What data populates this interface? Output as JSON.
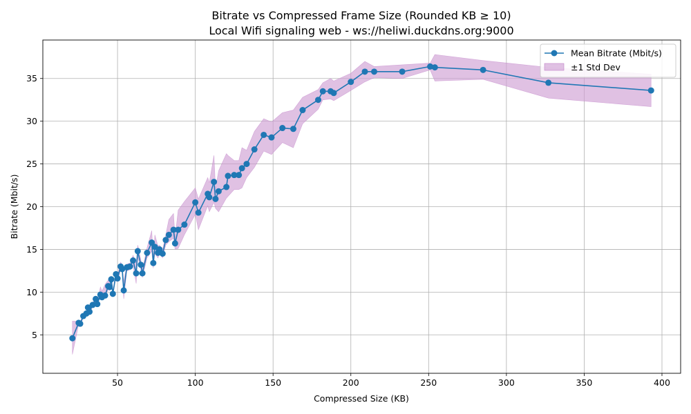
{
  "chart_data": {
    "type": "line",
    "title": "Bitrate vs Compressed Frame Size (Rounded KB ≥ 10)",
    "subtitle": "Local Wifi signaling web - ws://heliwi.duckdns.org:9000",
    "xlabel": "Compressed Size (KB)",
    "ylabel": "Bitrate (Mbit/s)",
    "xlim": [
      2,
      412
    ],
    "ylim": [
      0.5,
      39.5
    ],
    "xticks": [
      50,
      100,
      150,
      200,
      250,
      300,
      350,
      400
    ],
    "yticks": [
      5,
      10,
      15,
      20,
      25,
      30,
      35
    ],
    "grid": true,
    "legend_position": "top-right",
    "colors": {
      "line": "#1f77b4",
      "band": "#cf9fd4",
      "band_edge": "#c080c8",
      "axes": "#000000",
      "grid": "#b0b0b0"
    },
    "series": [
      {
        "name": "Mean Bitrate (Mbit/s)",
        "marker": "circle",
        "x": [
          21,
          25,
          26,
          28,
          30,
          31,
          32,
          34,
          36,
          37,
          39,
          40,
          42,
          44,
          45,
          46,
          47,
          49,
          50,
          52,
          53,
          54,
          56,
          58,
          60,
          62,
          63,
          65,
          66,
          69,
          72,
          73,
          74,
          76,
          77,
          79,
          81,
          83,
          86,
          87,
          89,
          93,
          100,
          102,
          108,
          109,
          112,
          113,
          115,
          120,
          121,
          125,
          128,
          130,
          133,
          138,
          144,
          149,
          156,
          163,
          169,
          179,
          182,
          187,
          189,
          200,
          209,
          215,
          233,
          251,
          254,
          285,
          327,
          393
        ],
        "y": [
          4.6,
          6.4,
          6.3,
          7.2,
          7.5,
          8.2,
          7.7,
          8.5,
          9.2,
          8.6,
          9.7,
          9.4,
          9.6,
          10.7,
          10.6,
          11.5,
          9.8,
          12.1,
          11.6,
          13.0,
          12.7,
          10.2,
          12.9,
          13.0,
          13.7,
          12.2,
          14.8,
          13.2,
          12.2,
          14.6,
          15.8,
          13.4,
          15.3,
          14.6,
          15.0,
          14.5,
          16.1,
          16.7,
          17.3,
          15.7,
          17.3,
          17.9,
          20.5,
          19.3,
          21.5,
          21.1,
          22.9,
          20.9,
          21.8,
          22.3,
          23.6,
          23.7,
          23.7,
          24.5,
          25.0,
          26.7,
          28.4,
          28.1,
          29.2,
          29.1,
          31.3,
          32.5,
          33.5,
          33.5,
          33.3,
          34.6,
          35.8,
          35.8,
          35.8,
          36.4,
          36.3,
          36.0,
          34.5,
          33.6
        ]
      },
      {
        "name": "±1 Std Dev",
        "type": "band",
        "x": [
          21,
          25,
          26,
          28,
          30,
          31,
          32,
          34,
          36,
          37,
          39,
          40,
          42,
          44,
          45,
          46,
          47,
          49,
          50,
          52,
          53,
          54,
          56,
          58,
          60,
          62,
          63,
          65,
          66,
          69,
          72,
          73,
          74,
          76,
          77,
          79,
          81,
          83,
          86,
          87,
          89,
          93,
          100,
          102,
          108,
          109,
          112,
          113,
          115,
          120,
          121,
          125,
          128,
          130,
          133,
          138,
          144,
          149,
          156,
          163,
          169,
          179,
          182,
          187,
          189,
          200,
          209,
          215,
          233,
          251,
          254,
          285,
          327,
          393
        ],
        "lower": [
          2.7,
          6.2,
          6.1,
          7.0,
          7.3,
          8.0,
          7.5,
          8.3,
          9.0,
          8.4,
          9.5,
          9.2,
          9.4,
          10.3,
          10.2,
          11.1,
          9.6,
          11.8,
          11.2,
          12.6,
          12.3,
          9.2,
          12.5,
          12.6,
          13.1,
          11.0,
          14.1,
          12.6,
          11.7,
          14.0,
          14.8,
          12.8,
          14.5,
          14.0,
          14.5,
          14.0,
          15.5,
          15.9,
          16.3,
          15.0,
          15.1,
          16.7,
          19.1,
          17.3,
          20.1,
          19.4,
          20.5,
          19.8,
          19.4,
          21.0,
          21.2,
          22.0,
          22.0,
          22.2,
          23.4,
          24.6,
          26.5,
          26.1,
          27.5,
          26.9,
          29.7,
          31.4,
          32.5,
          32.6,
          32.4,
          33.6,
          34.6,
          35.1,
          35.0,
          36.0,
          34.7,
          34.9,
          32.7,
          31.7
        ],
        "upper": [
          6.6,
          6.6,
          6.5,
          7.4,
          7.7,
          8.4,
          7.9,
          8.7,
          9.4,
          8.8,
          10.6,
          10.1,
          10.9,
          11.4,
          11.3,
          11.9,
          10.1,
          12.5,
          12.0,
          13.5,
          13.2,
          11.2,
          13.3,
          13.4,
          14.3,
          13.4,
          15.5,
          13.8,
          12.7,
          15.2,
          17.2,
          14.0,
          16.7,
          15.4,
          15.5,
          15.0,
          16.7,
          18.5,
          19.2,
          16.4,
          19.6,
          20.6,
          22.2,
          20.9,
          23.4,
          22.8,
          26.0,
          22.1,
          24.2,
          26.2,
          26.0,
          25.4,
          25.4,
          26.9,
          26.6,
          28.8,
          30.3,
          29.9,
          31.0,
          31.3,
          32.8,
          33.7,
          34.5,
          35.0,
          34.7,
          35.6,
          37.0,
          36.4,
          36.6,
          36.8,
          37.8,
          37.1,
          36.3,
          35.5
        ]
      }
    ]
  }
}
